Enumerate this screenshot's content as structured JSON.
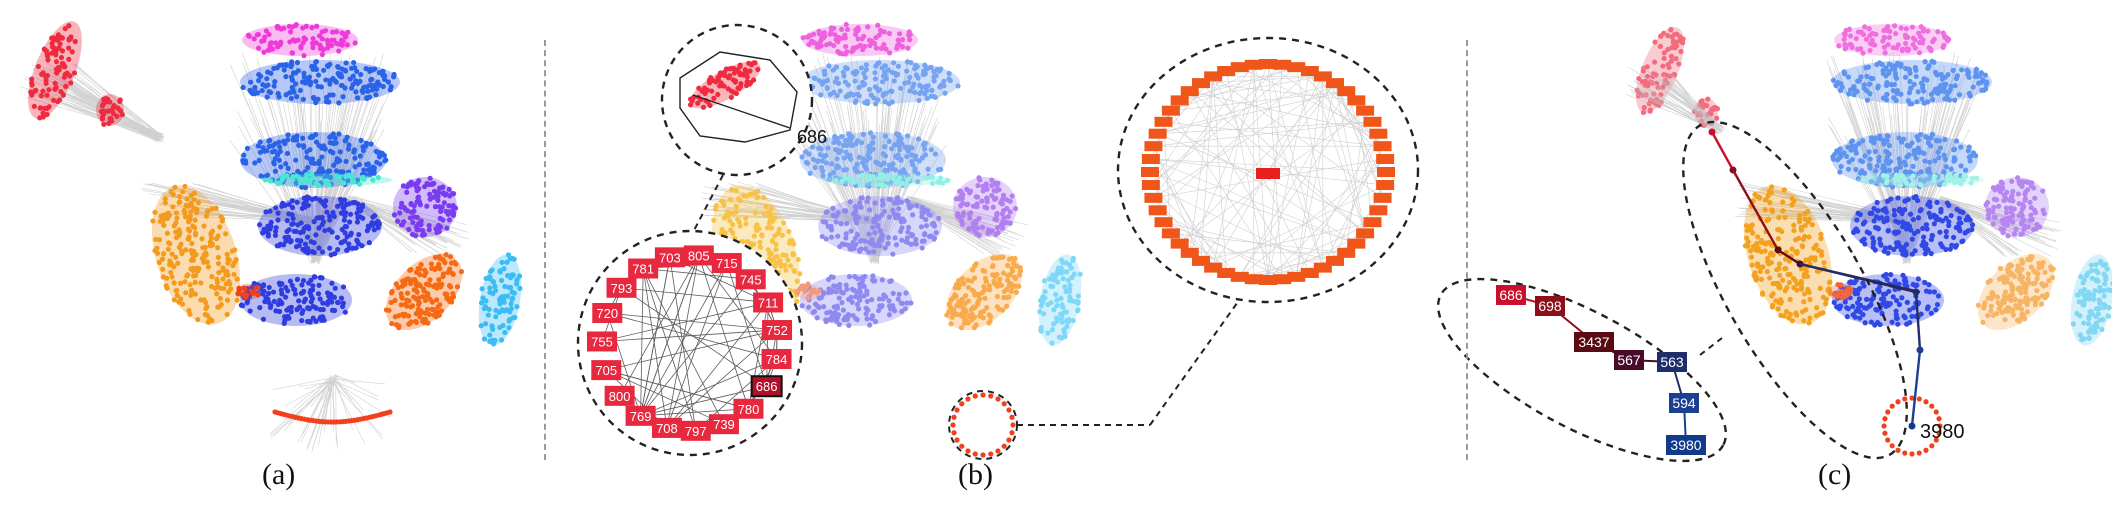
{
  "panels": [
    {
      "label": "(a)"
    },
    {
      "label": "(b)"
    },
    {
      "label": "(c)"
    }
  ],
  "panel_b": {
    "highlight_node": "686",
    "ring_nodes": [
      "805",
      "715",
      "745",
      "711",
      "752",
      "784",
      "686",
      "780",
      "739",
      "797",
      "708",
      "769",
      "800",
      "705",
      "755",
      "720",
      "793",
      "781",
      "703"
    ]
  },
  "panel_c": {
    "path_nodes": [
      "686",
      "698",
      "3437",
      "567",
      "563",
      "594",
      "3980"
    ],
    "path_colors": [
      "#c8102e",
      "#8e0f1c",
      "#5a0a12",
      "#4a0b2a",
      "#1f2d6b",
      "#1c3f8f",
      "#123a8a"
    ],
    "target_label": "3980"
  },
  "colors": {
    "red": "#ef2b40",
    "magenta": "#ee3bd8",
    "blue": "#2a62e8",
    "cyan": "#46e8d2",
    "violet": "#7a3cf0",
    "navy_blue": "#2f3de0",
    "orange": "#f39b1e",
    "dark_orange": "#f56a12",
    "sky": "#3cbcf4",
    "red_orange": "#f0401c",
    "edge_gray": "#bdbdbd"
  }
}
